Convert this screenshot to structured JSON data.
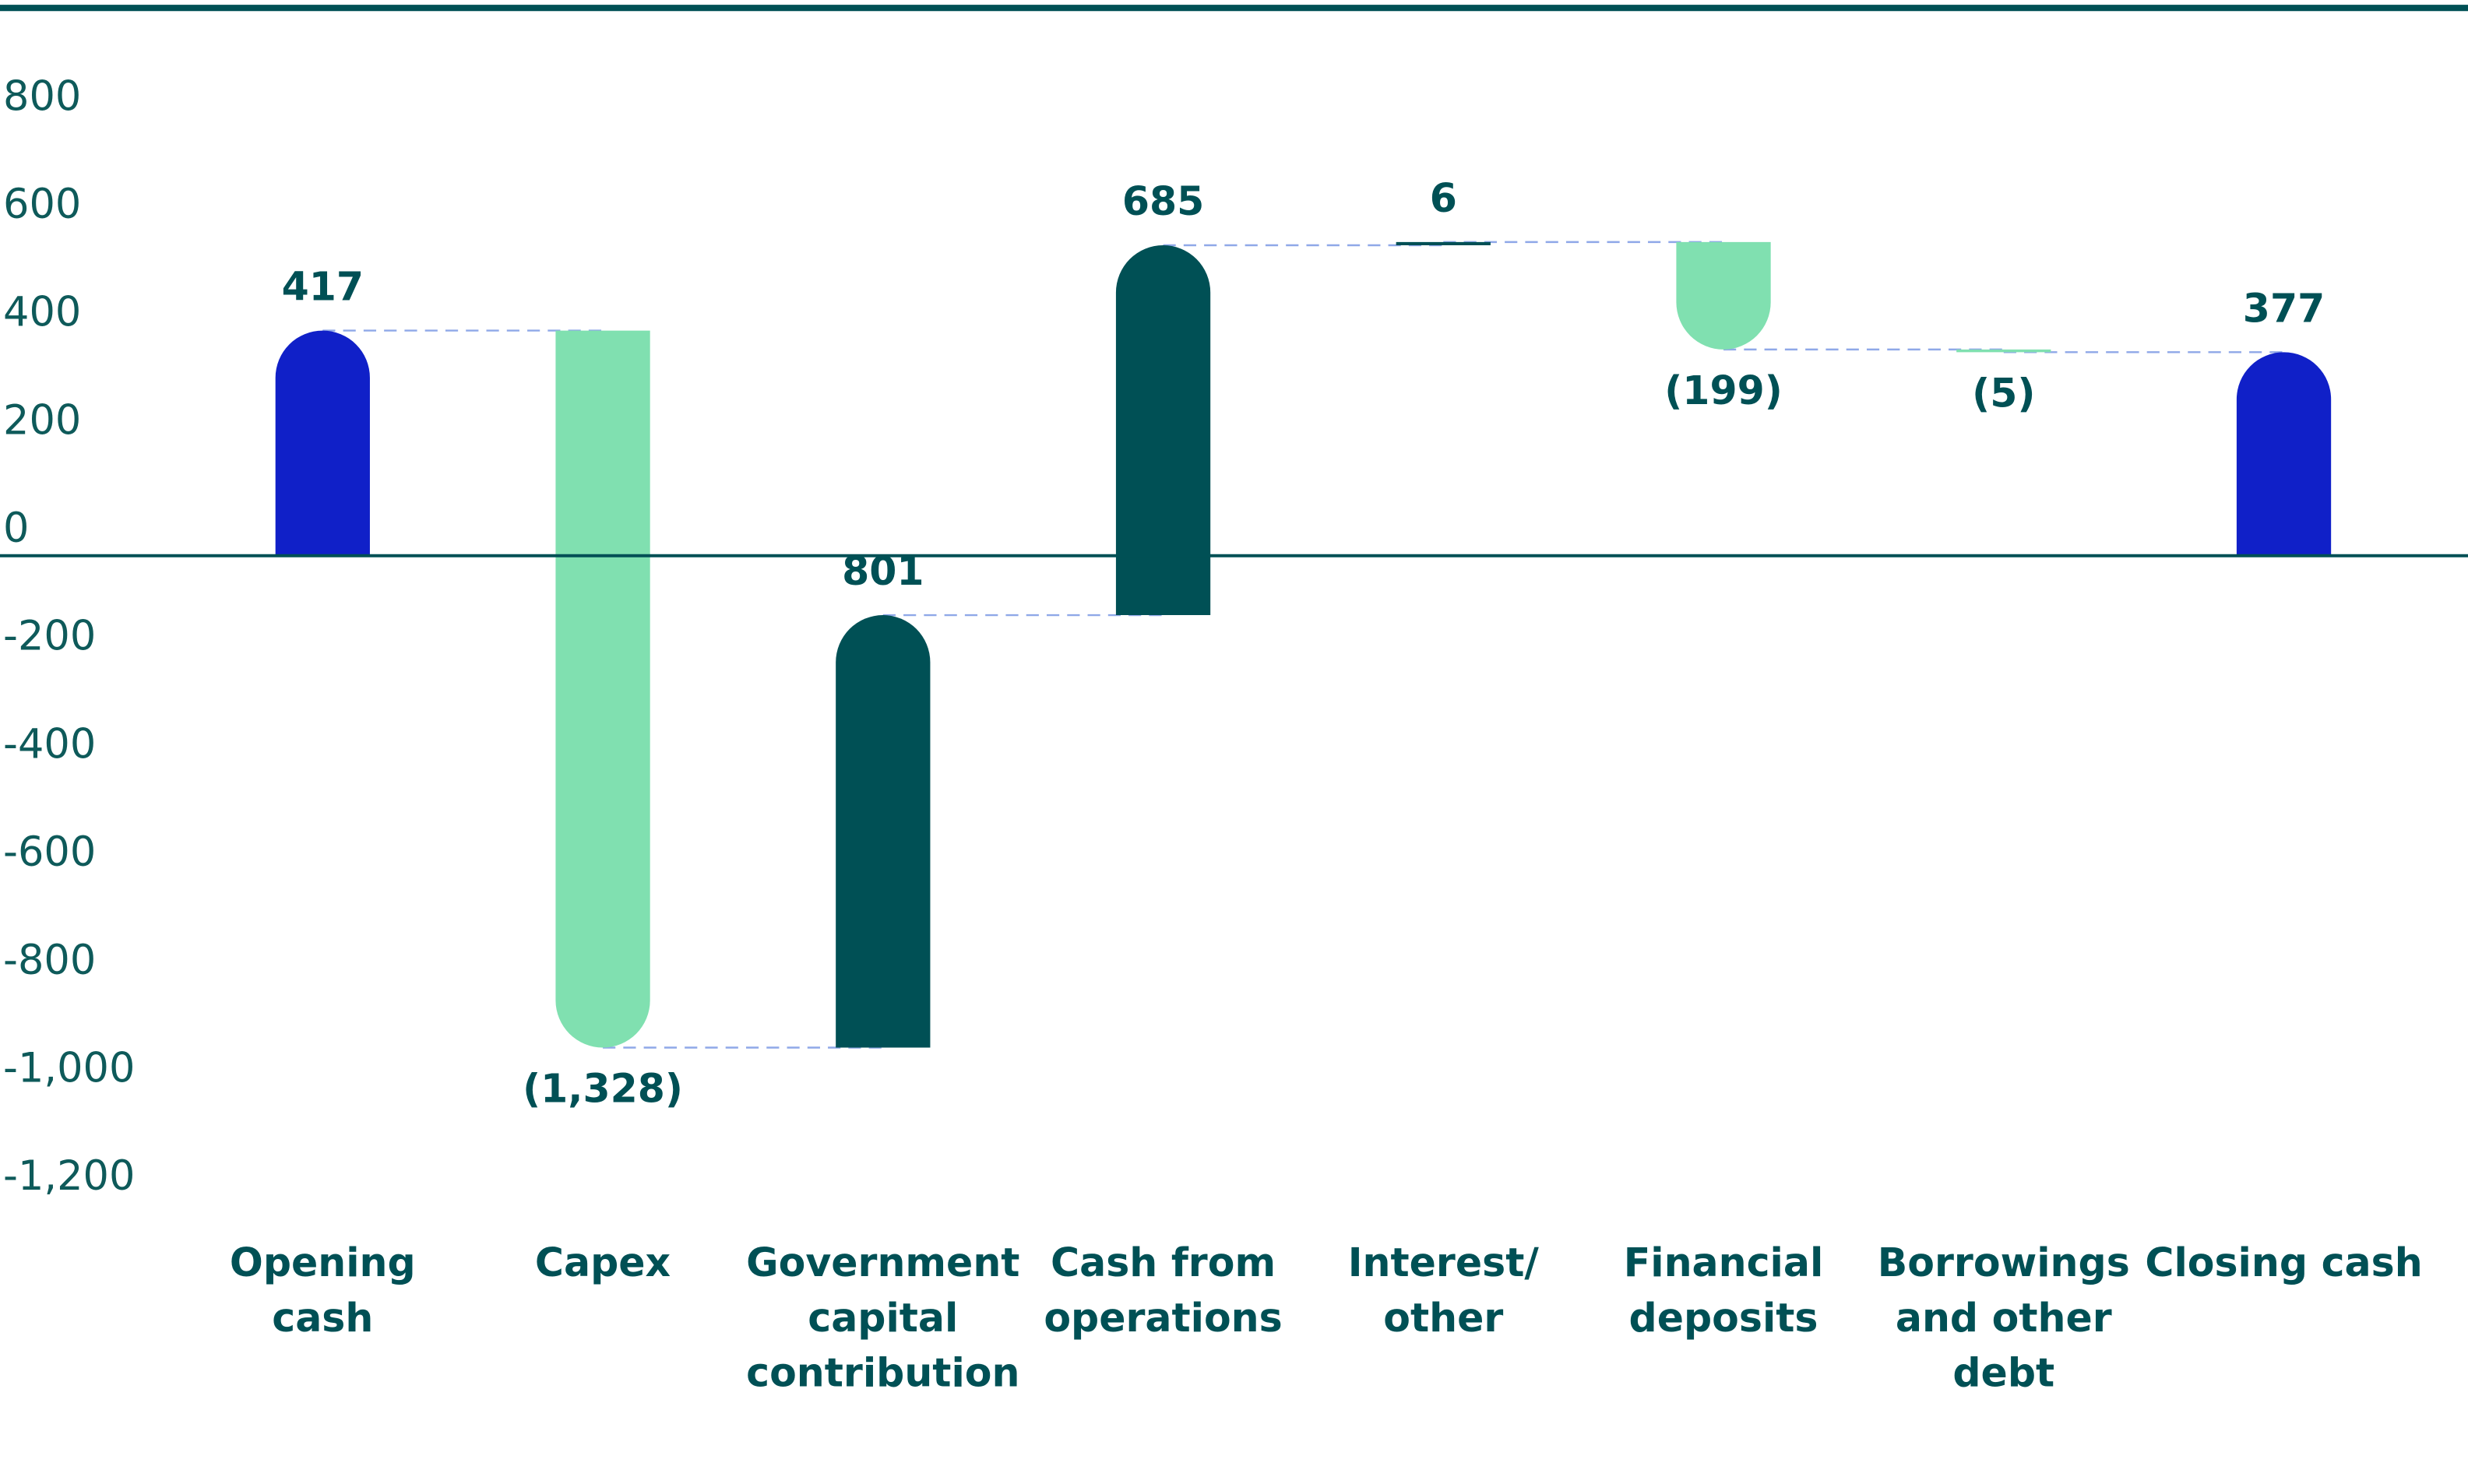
{
  "chart_data": {
    "type": "waterfall",
    "categories": [
      "Opening cash",
      "Capex",
      "Government capital contribution",
      "Cash from operations",
      "Interest/ other",
      "Financial deposits",
      "Borrowings and other debt",
      "Closing cash"
    ],
    "values": [
      417,
      -1328,
      801,
      685,
      6,
      -199,
      -5,
      377
    ],
    "value_labels": [
      "417",
      "(1,328)",
      "801",
      "685",
      "6",
      "(199)",
      "(5)",
      "377"
    ],
    "totals": [
      true,
      false,
      false,
      false,
      false,
      false,
      false,
      true
    ],
    "colors": {
      "total": "#1020c8",
      "increase": "#005055",
      "decrease": "#80e0b0"
    },
    "ylim": [
      -1250,
      1000
    ],
    "yticks": [
      {
        "value": -1200,
        "label": "-1,200"
      },
      {
        "value": -1000,
        "label": "-1,000"
      },
      -800,
      -600,
      -400,
      -200,
      0,
      200,
      400,
      600,
      800
    ],
    "grid": false
  }
}
